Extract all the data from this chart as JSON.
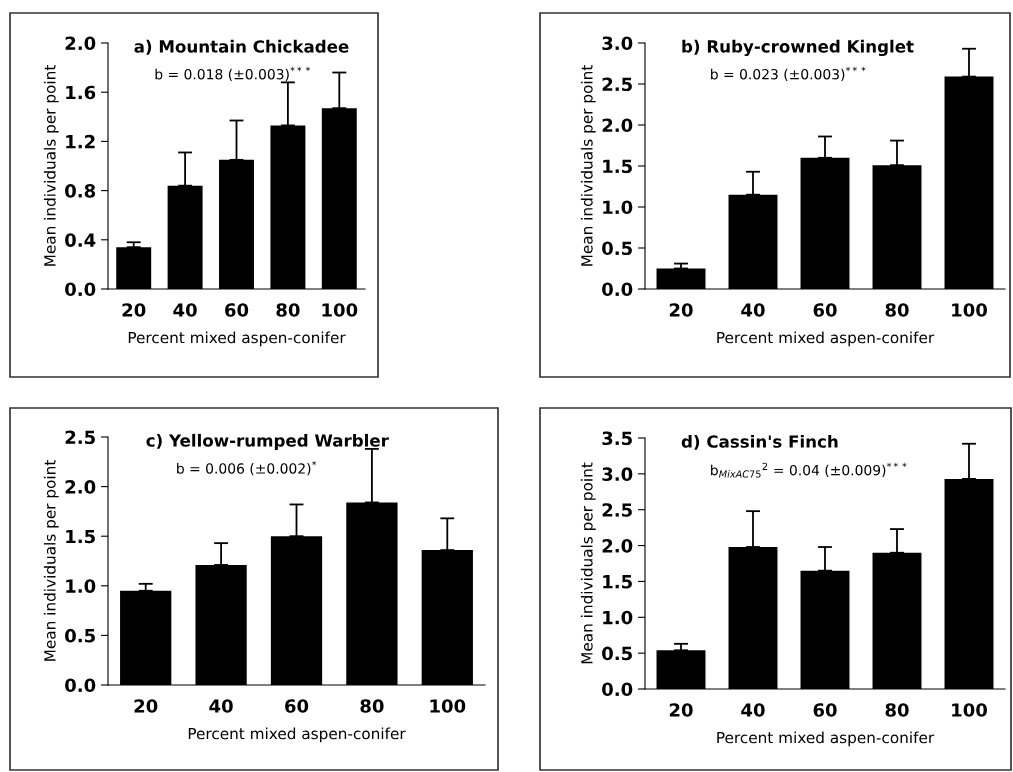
{
  "chart_data": [
    {
      "type": "bar",
      "title": "a) Mountain Chickadee",
      "subtitle": "b = 0.018 (±0.003)$^{***}$",
      "xlabel": "Percent mixed aspen-conifer",
      "ylabel": "Mean individuals per point",
      "categories": [
        "20",
        "40",
        "60",
        "80",
        "100"
      ],
      "color": "#000000",
      "values": [
        0.34,
        0.84,
        1.05,
        1.33,
        1.47
      ],
      "errors": [
        [
          0.34,
          0.38
        ],
        [
          0.84,
          1.11
        ],
        [
          1.05,
          1.37
        ],
        [
          1.33,
          1.68
        ],
        [
          1.47,
          1.76
        ]
      ],
      "ylim": [
        0,
        2.0
      ],
      "yticks": [
        {
          "value": 0,
          "label": "0.0"
        },
        0.4,
        0.8,
        1.2,
        1.6,
        {
          "value": 2,
          "label": "2.0"
        }
      ],
      "grid": false,
      "legend": false
    },
    {
      "type": "bar",
      "title": "b) Ruby-crowned Kinglet",
      "subtitle": "b = 0.023 (±0.003)$^{***}$",
      "xlabel": "Percent mixed aspen-conifer",
      "ylabel": "Mean individuals per point",
      "categories": [
        "20",
        "40",
        "60",
        "80",
        "100"
      ],
      "color": "#000000",
      "values": [
        0.25,
        1.15,
        1.6,
        1.51,
        2.59
      ],
      "errors": [
        [
          0.25,
          0.31
        ],
        [
          1.15,
          1.43
        ],
        [
          1.6,
          1.86
        ],
        [
          1.51,
          1.81
        ],
        [
          2.59,
          2.93
        ]
      ],
      "ylim": [
        0,
        3.0
      ],
      "yticks": [
        {
          "value": 0,
          "label": "0.0"
        },
        0.5,
        {
          "value": 1,
          "label": "1.0"
        },
        1.5,
        {
          "value": 2,
          "label": "2.0"
        },
        2.5,
        {
          "value": 3,
          "label": "3.0"
        }
      ],
      "grid": false,
      "legend": false
    },
    {
      "type": "bar",
      "title": "c) Yellow-rumped Warbler",
      "subtitle": "b = 0.006 (±0.002)$^{*}$",
      "xlabel": "Percent mixed aspen-conifer",
      "ylabel": "Mean individuals per point",
      "categories": [
        "20",
        "40",
        "60",
        "80",
        "100"
      ],
      "color": "#000000",
      "values": [
        0.95,
        1.21,
        1.5,
        1.84,
        1.36
      ],
      "errors": [
        [
          0.95,
          1.02
        ],
        [
          1.21,
          1.43
        ],
        [
          1.5,
          1.82
        ],
        [
          1.84,
          2.38
        ],
        [
          1.36,
          1.68
        ]
      ],
      "ylim": [
        0,
        2.5
      ],
      "yticks": [
        {
          "value": 0,
          "label": "0.0"
        },
        0.5,
        {
          "value": 1,
          "label": "1.0"
        },
        1.5,
        {
          "value": 2,
          "label": "2.0"
        },
        2.5
      ],
      "grid": false,
      "legend": false
    },
    {
      "type": "bar",
      "title": "d) Cassin's Finch",
      "subtitle": "b$_{MixAC75}$$^{2}$ = 0.04 (±0.009)$^{***}$",
      "xlabel": "Percent mixed aspen-conifer",
      "ylabel": "Mean individuals per point",
      "categories": [
        "20",
        "40",
        "60",
        "80",
        "100"
      ],
      "color": "#000000",
      "values": [
        0.54,
        1.98,
        1.65,
        1.9,
        2.93
      ],
      "errors": [
        [
          0.54,
          0.63
        ],
        [
          1.98,
          2.48
        ],
        [
          1.65,
          1.98
        ],
        [
          1.9,
          2.23
        ],
        [
          2.93,
          3.42
        ]
      ],
      "ylim": [
        0,
        3.5
      ],
      "yticks": [
        {
          "value": 0,
          "label": "0.0"
        },
        0.5,
        {
          "value": 1,
          "label": "1.0"
        },
        1.5,
        {
          "value": 2,
          "label": "2.0"
        },
        2.5,
        {
          "value": 3,
          "label": "3.0"
        },
        3.5
      ],
      "grid": false,
      "legend": false
    }
  ]
}
